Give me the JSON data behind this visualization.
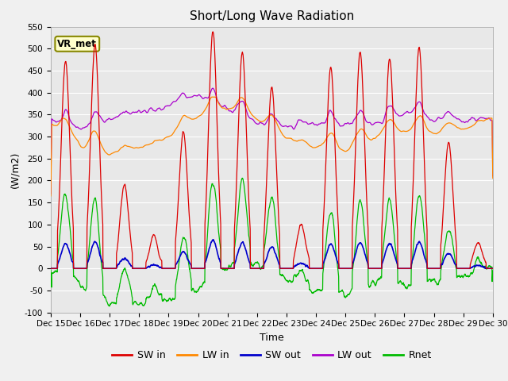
{
  "title": "Short/Long Wave Radiation",
  "xlabel": "Time",
  "ylabel": "(W/m2)",
  "ylim": [
    -100,
    550
  ],
  "xlim": [
    0,
    15
  ],
  "x_tick_labels": [
    "Dec 15",
    "Dec 16",
    "Dec 17",
    "Dec 18",
    "Dec 19",
    "Dec 20",
    "Dec 21",
    "Dec 22",
    "Dec 23",
    "Dec 24",
    "Dec 25",
    "Dec 26",
    "Dec 27",
    "Dec 28",
    "Dec 29",
    "Dec 30"
  ],
  "annotation": "VR_met",
  "fig_bg_color": "#f0f0f0",
  "plot_bg_color": "#e8e8e8",
  "sw_in_color": "#dd0000",
  "lw_in_color": "#ff8800",
  "sw_out_color": "#0000cc",
  "lw_out_color": "#aa00cc",
  "rnet_color": "#00bb00",
  "title_fontsize": 11,
  "axis_fontsize": 9,
  "tick_fontsize": 7.5,
  "legend_fontsize": 9,
  "yticks": [
    -100,
    -50,
    0,
    50,
    100,
    150,
    200,
    250,
    300,
    350,
    400,
    450,
    500,
    550
  ]
}
